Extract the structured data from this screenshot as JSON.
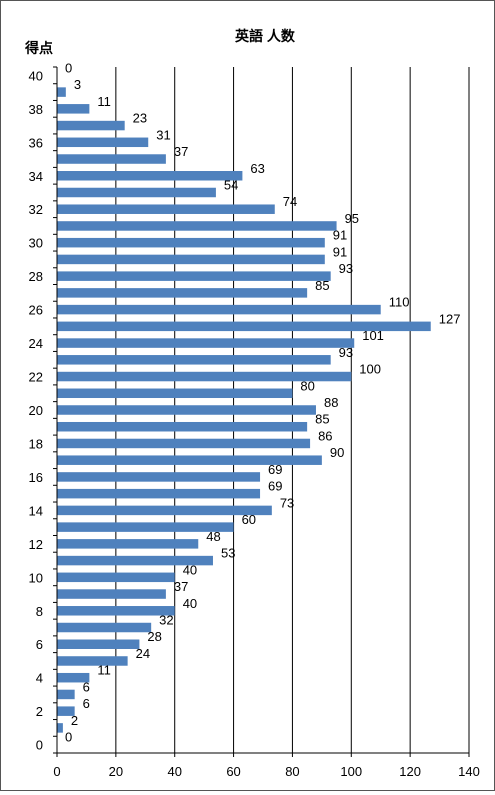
{
  "chart_data": {
    "type": "bar",
    "orientation": "horizontal",
    "title": "英語 人数",
    "ylabel": "得点",
    "xlabel": "",
    "xlim": [
      0,
      140
    ],
    "x_ticks": [
      0,
      20,
      40,
      60,
      80,
      100,
      120,
      140
    ],
    "y_tick_labels": [
      0,
      2,
      4,
      6,
      8,
      10,
      12,
      14,
      16,
      18,
      20,
      22,
      24,
      26,
      28,
      30,
      32,
      34,
      36,
      38,
      40
    ],
    "grid": "vertical",
    "legend": "none",
    "bar_color": "#4f81bd",
    "categories": [
      40,
      39,
      38,
      37,
      36,
      35,
      34,
      33,
      32,
      31,
      30,
      29,
      28,
      27,
      26,
      25,
      24,
      23,
      22,
      21,
      20,
      19,
      18,
      17,
      16,
      15,
      14,
      13,
      12,
      11,
      10,
      9,
      8,
      7,
      6,
      5,
      4,
      3,
      2,
      1,
      0
    ],
    "values": [
      0,
      3,
      11,
      23,
      31,
      37,
      63,
      54,
      74,
      95,
      91,
      91,
      93,
      85,
      110,
      127,
      101,
      93,
      100,
      80,
      88,
      85,
      86,
      90,
      69,
      69,
      73,
      60,
      48,
      53,
      40,
      37,
      40,
      32,
      28,
      24,
      11,
      6,
      6,
      2,
      0
    ]
  }
}
